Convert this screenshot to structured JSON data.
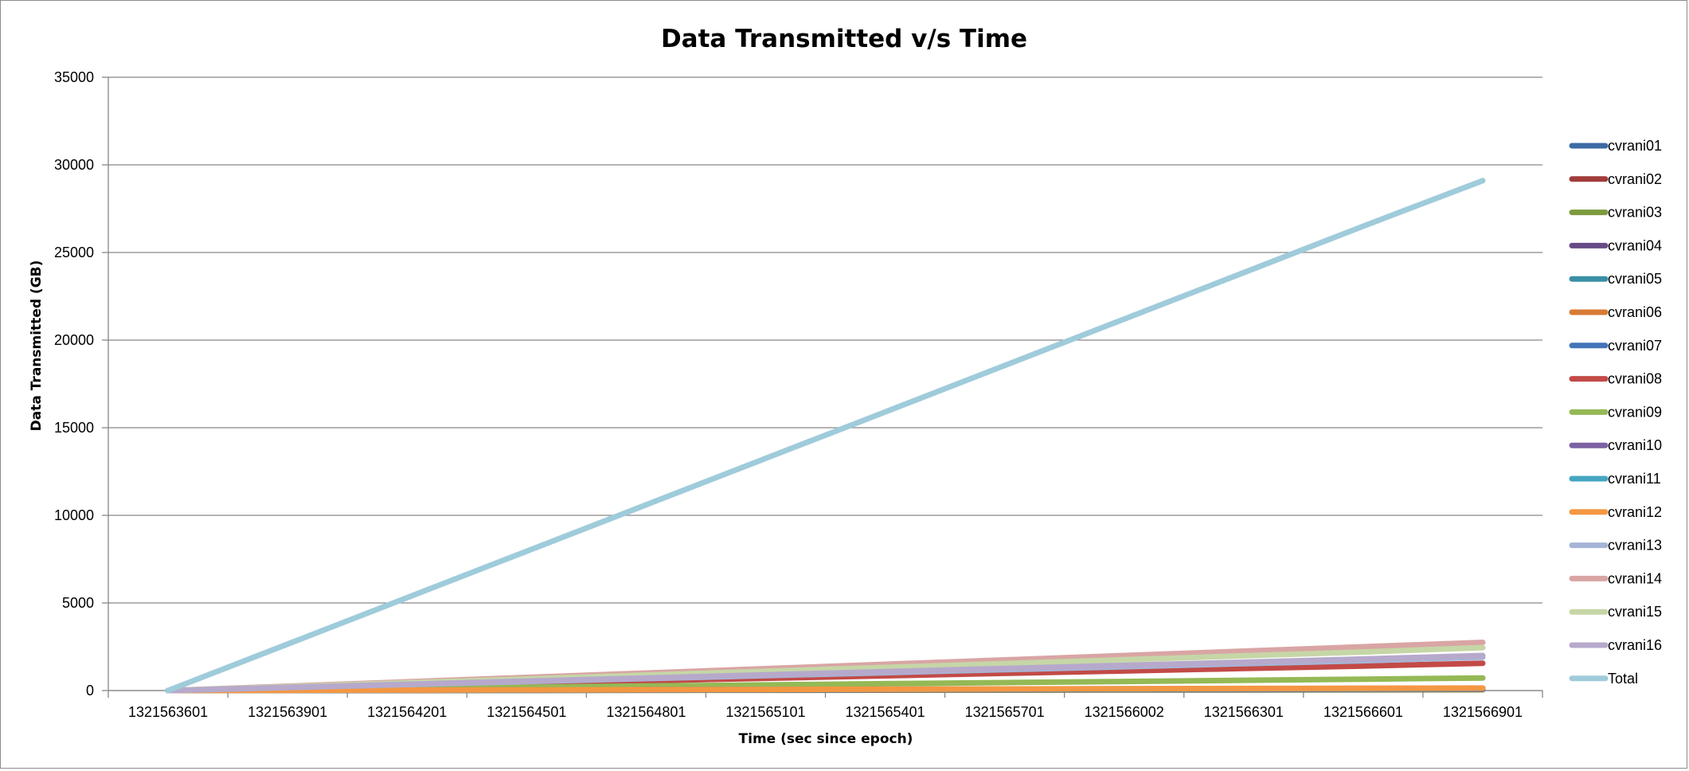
{
  "chart_data": {
    "type": "line",
    "title": "Data Transmitted v/s Time",
    "xlabel": "Time (sec since epoch)",
    "ylabel": "Data Transmitted (GB)",
    "ylim": [
      0,
      35000
    ],
    "y_ticks": [
      "0",
      "5000",
      "10000",
      "15000",
      "20000",
      "25000",
      "30000",
      "35000"
    ],
    "categories": [
      "1321563601",
      "1321563901",
      "1321564201",
      "1321564501",
      "1321564801",
      "1321565101",
      "1321565401",
      "1321565701",
      "1321566002",
      "1321566301",
      "1321566601",
      "1321566901"
    ],
    "grid": true,
    "legend_position": "right",
    "series": [
      {
        "name": "cvrani01",
        "color": "#3d6aa5",
        "values": [
          0,
          5,
          10,
          15,
          20,
          25,
          30,
          35,
          40,
          45,
          50,
          55
        ]
      },
      {
        "name": "cvrani02",
        "color": "#a13c3a",
        "values": [
          0,
          10,
          20,
          30,
          40,
          50,
          60,
          70,
          80,
          90,
          100,
          110
        ]
      },
      {
        "name": "cvrani03",
        "color": "#7d9b3e",
        "values": [
          0,
          4,
          8,
          12,
          16,
          20,
          24,
          28,
          32,
          36,
          40,
          44
        ]
      },
      {
        "name": "cvrani04",
        "color": "#674b87",
        "values": [
          0,
          6,
          12,
          18,
          24,
          30,
          36,
          42,
          48,
          54,
          60,
          66
        ]
      },
      {
        "name": "cvrani05",
        "color": "#3a8fa5",
        "values": [
          0,
          8,
          16,
          24,
          32,
          40,
          48,
          56,
          64,
          72,
          80,
          88
        ]
      },
      {
        "name": "cvrani06",
        "color": "#d87a34",
        "values": [
          0,
          7,
          14,
          21,
          28,
          35,
          42,
          49,
          56,
          63,
          70,
          77
        ]
      },
      {
        "name": "cvrani07",
        "color": "#4474b8",
        "values": [
          0,
          9,
          18,
          27,
          36,
          45,
          54,
          63,
          72,
          81,
          90,
          99
        ]
      },
      {
        "name": "cvrani08",
        "color": "#c24a47",
        "values": [
          0,
          140,
          280,
          420,
          560,
          700,
          840,
          980,
          1120,
          1260,
          1400,
          1560
        ]
      },
      {
        "name": "cvrani09",
        "color": "#94b955",
        "values": [
          0,
          65,
          130,
          195,
          260,
          325,
          390,
          455,
          520,
          585,
          650,
          720
        ]
      },
      {
        "name": "cvrani10",
        "color": "#7c61a3",
        "values": [
          0,
          12,
          24,
          36,
          48,
          60,
          72,
          84,
          96,
          108,
          120,
          132
        ]
      },
      {
        "name": "cvrani11",
        "color": "#44a6c2",
        "values": [
          0,
          11,
          22,
          33,
          44,
          55,
          66,
          77,
          88,
          99,
          110,
          121
        ]
      },
      {
        "name": "cvrani12",
        "color": "#f49743",
        "values": [
          0,
          13,
          26,
          39,
          52,
          65,
          78,
          91,
          104,
          117,
          130,
          143
        ]
      },
      {
        "name": "cvrani13",
        "color": "#a5b5d6",
        "values": [
          0,
          170,
          340,
          510,
          680,
          850,
          1020,
          1190,
          1360,
          1530,
          1700,
          1900
        ]
      },
      {
        "name": "cvrani14",
        "color": "#d9a5a4",
        "values": [
          0,
          250,
          500,
          750,
          1000,
          1250,
          1500,
          1750,
          2000,
          2250,
          2500,
          2750
        ]
      },
      {
        "name": "cvrani15",
        "color": "#c6d6a7",
        "values": [
          0,
          220,
          440,
          660,
          880,
          1100,
          1320,
          1540,
          1760,
          1980,
          2200,
          2450
        ]
      },
      {
        "name": "cvrani16",
        "color": "#b6a9cc",
        "values": [
          0,
          180,
          360,
          540,
          720,
          900,
          1080,
          1260,
          1440,
          1620,
          1800,
          2000
        ]
      },
      {
        "name": "Total",
        "color": "#9fcbda",
        "values": [
          0,
          2650,
          5300,
          7950,
          10600,
          13250,
          15900,
          18550,
          21200,
          23850,
          26500,
          29100
        ]
      }
    ]
  }
}
